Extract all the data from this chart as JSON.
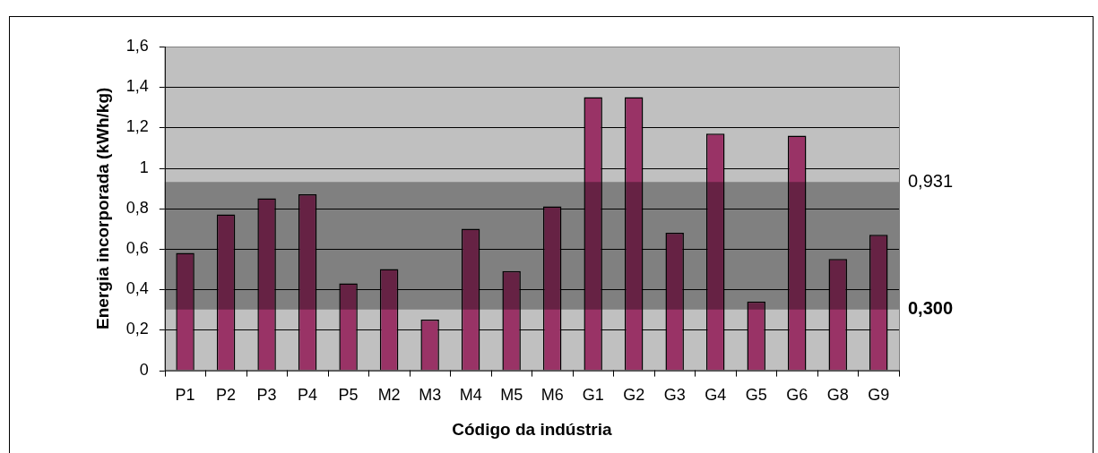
{
  "chart_data": {
    "type": "bar",
    "categories": [
      "P1",
      "P2",
      "P3",
      "P4",
      "P5",
      "M2",
      "M3",
      "M4",
      "M5",
      "M6",
      "G1",
      "G2",
      "G3",
      "G4",
      "G5",
      "G6",
      "G8",
      "G9"
    ],
    "values": [
      0.58,
      0.77,
      0.85,
      0.87,
      0.43,
      0.5,
      0.25,
      0.7,
      0.49,
      0.81,
      1.35,
      1.35,
      0.68,
      1.17,
      0.34,
      1.16,
      0.55,
      0.67
    ],
    "color": "#993366",
    "xlabel": "Código da indústria",
    "ylabel": "Energia incorporada (kWh/kg)",
    "ylim": [
      0,
      1.6
    ],
    "yticks": [
      0,
      {
        "value": 0.2,
        "label": "0,2"
      },
      {
        "value": 0.4,
        "label": "0,4"
      },
      {
        "value": 0.6,
        "label": "0,6"
      },
      {
        "value": 0.8,
        "label": "0,8"
      },
      1,
      {
        "value": 1.2,
        "label": "1,2"
      },
      {
        "value": 1.4,
        "label": "1,4"
      },
      {
        "value": 1.6,
        "label": "1,6"
      }
    ],
    "grid": "y",
    "legend": false,
    "bands": [
      {
        "axis": "y",
        "from": 0.3,
        "to": 0.931,
        "color": "#808080"
      }
    ],
    "annotations": [
      "0,931",
      "0,300"
    ]
  }
}
